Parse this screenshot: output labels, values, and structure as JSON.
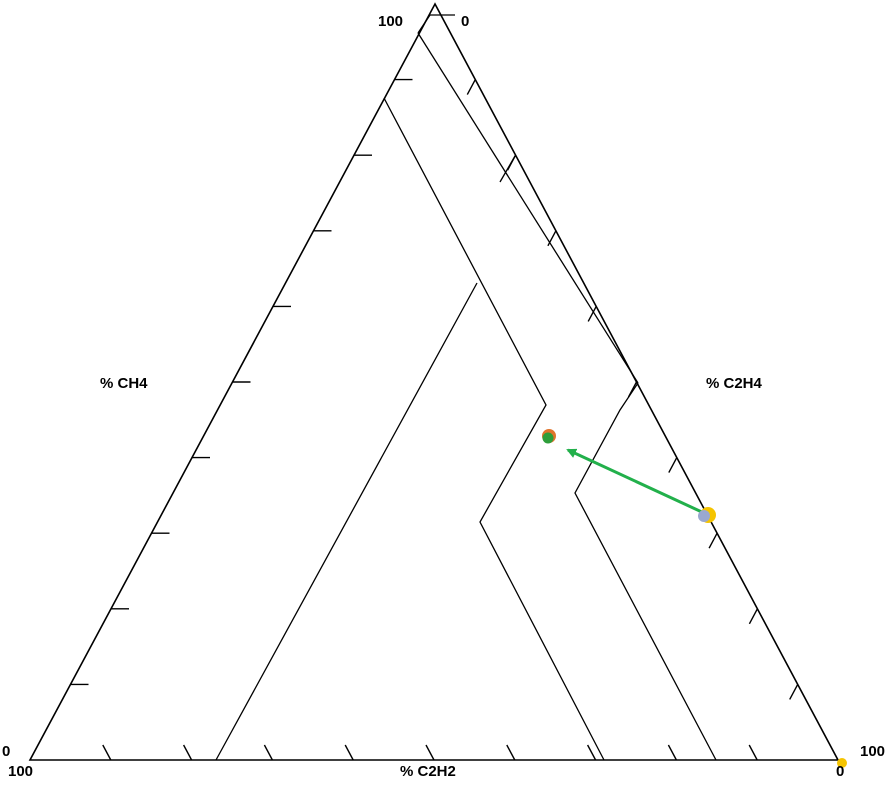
{
  "diagram": {
    "axes": {
      "ch4": {
        "label": "% CH4"
      },
      "c2h4": {
        "label": "% C2H4"
      },
      "c2h2": {
        "label": "% C2H2"
      }
    },
    "corner_labels": {
      "top_left": "100",
      "top_right": "0",
      "bottom_left_upper": "0",
      "bottom_left_lower": "100",
      "bottom_right_upper": "100",
      "bottom_right_lower": "0"
    },
    "tick_count": 10,
    "colors": {
      "lines": "#000000",
      "arrow": "#22b04b",
      "start_point": "#f5c400",
      "start_point_inner": "#9aa8d0",
      "end_point": "#2e9e3a",
      "end_point_ring": "#e0742c",
      "corner_marker": "#f5c400"
    }
  }
}
